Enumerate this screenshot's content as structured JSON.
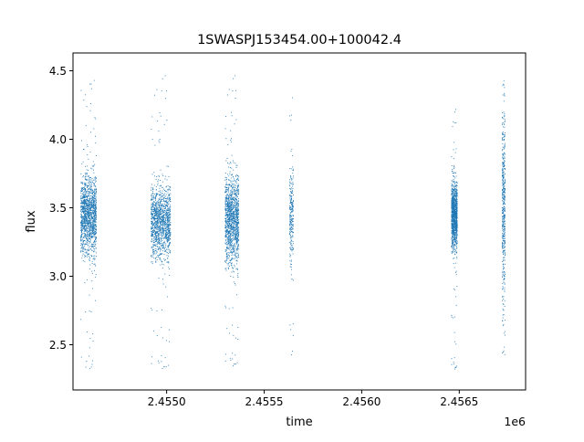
{
  "chart_data": {
    "type": "scatter",
    "title": "1SWASPJ153454.00+100042.4",
    "xlabel": "time",
    "ylabel": "flux",
    "x_offset_label": "1e6",
    "xlim": [
      2454520,
      2456840
    ],
    "ylim": [
      2.17,
      4.63
    ],
    "x_ticks": [
      2454500,
      2455000,
      2455500,
      2456000,
      2456500
    ],
    "x_tick_labels": [
      "2.4545",
      "2.4550",
      "2.4555",
      "2.4560",
      "2.4565"
    ],
    "y_ticks": [
      2.5,
      3.0,
      3.5,
      4.0,
      4.5
    ],
    "y_tick_labels": [
      "2.5",
      "3.0",
      "3.5",
      "4.0",
      "4.5"
    ],
    "grid": false,
    "marker_color": "#1f77b4",
    "clusters": [
      {
        "x_start": 2454560,
        "x_end": 2454640,
        "y_center": 3.45,
        "y_spread": 0.14,
        "y_min": 2.3,
        "y_max": 4.46,
        "density": 1.0
      },
      {
        "x_start": 2454920,
        "x_end": 2455020,
        "y_center": 3.4,
        "y_spread": 0.13,
        "y_min": 2.3,
        "y_max": 4.5,
        "density": 0.95
      },
      {
        "x_start": 2455300,
        "x_end": 2455370,
        "y_center": 3.42,
        "y_spread": 0.16,
        "y_min": 2.32,
        "y_max": 4.5,
        "density": 0.95
      },
      {
        "x_start": 2455630,
        "x_end": 2455650,
        "y_center": 3.45,
        "y_spread": 0.18,
        "y_min": 2.35,
        "y_max": 4.5,
        "density": 0.18
      },
      {
        "x_start": 2456460,
        "x_end": 2456490,
        "y_center": 3.45,
        "y_spread": 0.12,
        "y_min": 2.3,
        "y_max": 4.25,
        "density": 0.8
      },
      {
        "x_start": 2456720,
        "x_end": 2456735,
        "y_center": 3.5,
        "y_spread": 0.35,
        "y_min": 2.38,
        "y_max": 4.52,
        "density": 0.35
      }
    ]
  }
}
